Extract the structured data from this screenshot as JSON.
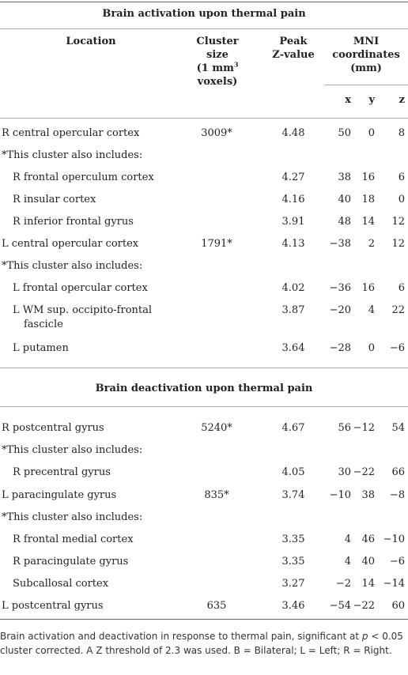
{
  "table": {
    "title_activation": "Brain activation upon thermal pain",
    "title_deactivation": "Brain deactivation upon thermal pain",
    "headers": {
      "location": "Location",
      "cluster_size_1": "Cluster size",
      "cluster_size_2a": "(1 mm",
      "cluster_size_sup": "3",
      "cluster_size_3": "voxels)",
      "peak_1": "Peak",
      "peak_2": "Z-value",
      "mni_1": "MNI",
      "mni_2": "coordinates",
      "mni_3": "(mm)",
      "x": "x",
      "y": "y",
      "z": "z"
    },
    "activation_rows": [
      {
        "location": "R central opercular cortex",
        "cluster": "3009*",
        "z_value": "4.48",
        "x": "50",
        "y": "0",
        "z": "8",
        "indent": 0
      },
      {
        "location": "*This cluster also includes:",
        "cluster": "",
        "z_value": "",
        "x": "",
        "y": "",
        "z": "",
        "indent": 0
      },
      {
        "location": "R frontal operculum cortex",
        "cluster": "",
        "z_value": "4.27",
        "x": "38",
        "y": "16",
        "z": "6",
        "indent": 1
      },
      {
        "location": "R insular cortex",
        "cluster": "",
        "z_value": "4.16",
        "x": "40",
        "y": "18",
        "z": "0",
        "indent": 1
      },
      {
        "location": "R inferior frontal gyrus",
        "cluster": "",
        "z_value": "3.91",
        "x": "48",
        "y": "14",
        "z": "12",
        "indent": 1
      },
      {
        "location": "L central opercular cortex",
        "cluster": "1791*",
        "z_value": "4.13",
        "x": "−38",
        "y": "2",
        "z": "12",
        "indent": 0
      },
      {
        "location": "*This cluster also includes:",
        "cluster": "",
        "z_value": "",
        "x": "",
        "y": "",
        "z": "",
        "indent": 0
      },
      {
        "location": "L frontal opercular cortex",
        "cluster": "",
        "z_value": "4.02",
        "x": "−36",
        "y": "16",
        "z": "6",
        "indent": 1
      },
      {
        "location": "L WM sup. occipito-frontal",
        "location_line2": "fascicle",
        "cluster": "",
        "z_value": "3.87",
        "x": "−20",
        "y": "4",
        "z": "22",
        "indent": 1
      },
      {
        "location": "L putamen",
        "cluster": "",
        "z_value": "3.64",
        "x": "−28",
        "y": "0",
        "z": "−6",
        "indent": 1
      }
    ],
    "deactivation_rows": [
      {
        "location": "R postcentral gyrus",
        "cluster": "5240*",
        "z_value": "4.67",
        "x": "56",
        "y": "−12",
        "z": "54",
        "indent": 0
      },
      {
        "location": "*This cluster also includes:",
        "cluster": "",
        "z_value": "",
        "x": "",
        "y": "",
        "z": "",
        "indent": 0
      },
      {
        "location": "R precentral gyrus",
        "cluster": "",
        "z_value": "4.05",
        "x": "30",
        "y": "−22",
        "z": "66",
        "indent": 1
      },
      {
        "location": "L paracingulate gyrus",
        "cluster": "835*",
        "z_value": "3.74",
        "x": "−10",
        "y": "38",
        "z": "−8",
        "indent": 0
      },
      {
        "location": "*This cluster also includes:",
        "cluster": "",
        "z_value": "",
        "x": "",
        "y": "",
        "z": "",
        "indent": 0
      },
      {
        "location": "R frontal medial cortex",
        "cluster": "",
        "z_value": "3.35",
        "x": "4",
        "y": "46",
        "z": "−10",
        "indent": 1
      },
      {
        "location": "R paracingulate gyrus",
        "cluster": "",
        "z_value": "3.35",
        "x": "4",
        "y": "40",
        "z": "−6",
        "indent": 1
      },
      {
        "location": "Subcallosal cortex",
        "cluster": "",
        "z_value": "3.27",
        "x": "−2",
        "y": "14",
        "z": "−14",
        "indent": 1
      },
      {
        "location": "L postcentral gyrus",
        "cluster": "635",
        "z_value": "3.46",
        "x": "−54",
        "y": "−22",
        "z": "60",
        "indent": 0
      }
    ]
  },
  "footnote": {
    "part1": "Brain activation and deactivation in response to thermal pain, significant at ",
    "p": "p",
    "part2": " < 0.05 cluster corrected. A Z threshold of 2.3 was used. B = Bilateral; L = Left; R = Right."
  }
}
